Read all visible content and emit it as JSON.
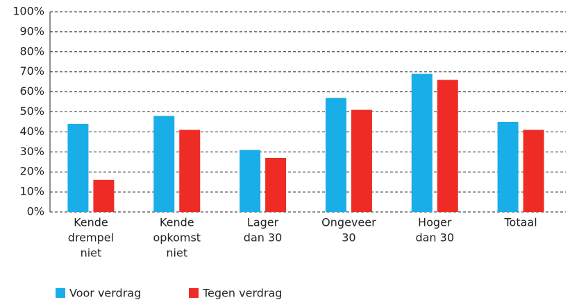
{
  "chart_data": {
    "type": "bar",
    "categories": [
      [
        "Kende",
        "drempel",
        "niet"
      ],
      [
        "Kende",
        "opkomst",
        "niet"
      ],
      [
        "Lager",
        "dan 30"
      ],
      [
        "Ongeveer",
        "30"
      ],
      [
        "Hoger",
        "dan 30"
      ],
      [
        "Totaal"
      ]
    ],
    "series": [
      {
        "name": "Voor verdrag",
        "color": "#1aaee8",
        "values": [
          44,
          48,
          31,
          57,
          69,
          45
        ]
      },
      {
        "name": "Tegen verdrag",
        "color": "#ee2b24",
        "values": [
          16,
          41,
          27,
          51,
          66,
          41
        ]
      }
    ],
    "ylim": [
      0,
      100
    ],
    "yticks": [
      {
        "value": 0,
        "label": "0%"
      },
      {
        "value": 10,
        "label": "10%"
      },
      {
        "value": 20,
        "label": "20%"
      },
      {
        "value": 30,
        "label": "30%"
      },
      {
        "value": 40,
        "label": "40%"
      },
      {
        "value": 50,
        "label": "50%"
      },
      {
        "value": 60,
        "label": "60%"
      },
      {
        "value": 70,
        "label": "70%"
      },
      {
        "value": 80,
        "label": "80%"
      },
      {
        "value": 90,
        "label": "90%"
      },
      {
        "value": 100,
        "label": "100%"
      }
    ],
    "grid": true,
    "legend": "bottom-left"
  }
}
